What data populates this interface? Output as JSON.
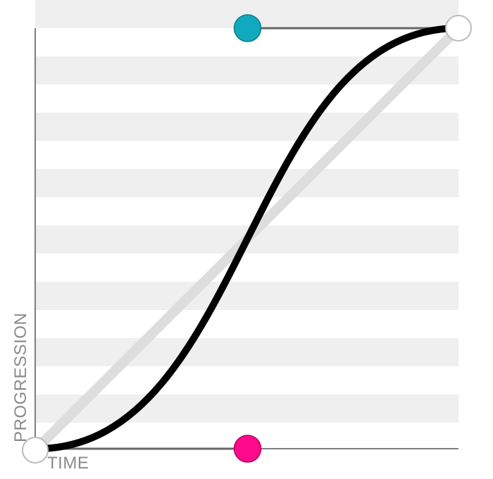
{
  "axes": {
    "x_label": "TIME",
    "y_label": "PROGRESSION"
  },
  "curve": {
    "type": "cubic-bezier",
    "p1": [
      0.5,
      0.0
    ],
    "p2": [
      0.5,
      1.0
    ]
  },
  "colors": {
    "stripe": "#efefef",
    "axis": "#555555",
    "curve": "#000000",
    "linear_reference": "#dddddd",
    "control_line": "#666666",
    "p1_handle": "#ff0a8c",
    "p2_handle": "#10a9bd",
    "endpoint_fill": "#ffffff",
    "endpoint_stroke": "#bbbbbb"
  },
  "icons": {
    "p1_handle": "circle-handle",
    "p2_handle": "circle-handle",
    "start_point": "circle-endpoint",
    "end_point": "circle-endpoint"
  }
}
